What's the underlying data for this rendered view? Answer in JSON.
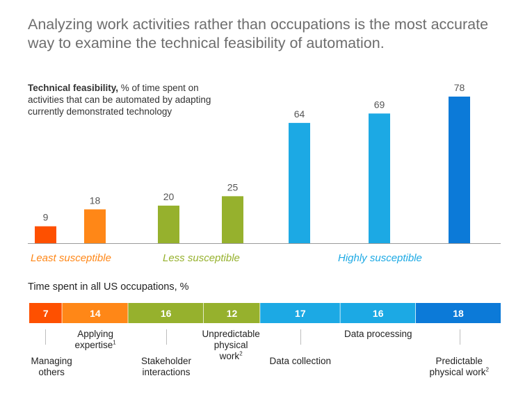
{
  "headline": "Analyzing work activities rather than occupations is the most accurate way to examine the technical feasibility of automation.",
  "feasibility_label": {
    "bold": "Technical feasibility,",
    "rest": " % of time spent on activities that can be automated by adapting currently demonstrated technology"
  },
  "time_title": "Time spent in all US occupations, %",
  "colors": {
    "red_orange": "#fe5000",
    "orange": "#ff8717",
    "green": "#96b12d",
    "light_blue": "#1ca9e4",
    "blue": "#0c7ad8"
  },
  "chart_data": [
    {
      "type": "bar",
      "title": "Technical feasibility, % of time spent on activities that can be automated by adapting currently demonstrated technology",
      "categories": [
        "Managing others",
        "Applying expertise",
        "Stakeholder interactions",
        "Unpredictable physical work",
        "Data collection",
        "Data processing",
        "Predictable physical work"
      ],
      "values": [
        9,
        18,
        20,
        25,
        64,
        69,
        78
      ],
      "ylim": [
        0,
        78
      ],
      "groups": [
        {
          "label": "Least susceptible",
          "color": "#ff8717",
          "indices": [
            0,
            1
          ]
        },
        {
          "label": "Less susceptible",
          "color": "#96b12d",
          "indices": [
            2,
            3
          ]
        },
        {
          "label": "Highly susceptible",
          "color": "#1ca9e4",
          "indices": [
            4,
            5,
            6
          ]
        }
      ],
      "bar_colors": [
        "#fe5000",
        "#ff8717",
        "#96b12d",
        "#96b12d",
        "#1ca9e4",
        "#1ca9e4",
        "#0c7ad8"
      ],
      "grid": false,
      "legend": "none"
    },
    {
      "type": "bar",
      "title": "Time spent in all US occupations, %",
      "orientation": "stacked-horizontal",
      "categories": [
        "Managing others",
        "Applying expertise",
        "Stakeholder interactions",
        "Unpredictable physical work",
        "Data collection",
        "Data processing",
        "Predictable physical work"
      ],
      "values": [
        7,
        14,
        16,
        12,
        17,
        16,
        18
      ],
      "segment_colors": [
        "#fe5000",
        "#ff8717",
        "#96b12d",
        "#96b12d",
        "#1ca9e4",
        "#1ca9e4",
        "#0c7ad8"
      ]
    }
  ],
  "category_labels": [
    {
      "text": "Managing others",
      "sup": ""
    },
    {
      "text": "Applying expertise",
      "sup": "1"
    },
    {
      "text": "Stakeholder interactions",
      "sup": ""
    },
    {
      "text": "Unpredictable physical work",
      "sup": "2"
    },
    {
      "text": "Data collection",
      "sup": ""
    },
    {
      "text": "Data processing",
      "sup": ""
    },
    {
      "text": "Predictable physical work",
      "sup": "2"
    }
  ]
}
